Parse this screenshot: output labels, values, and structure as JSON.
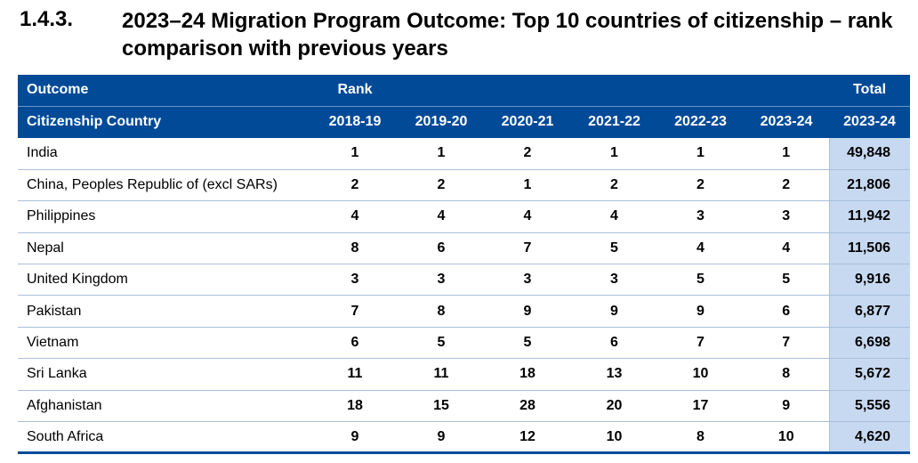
{
  "heading": {
    "number": "1.4.3.",
    "title": "2023–24 Migration Program Outcome: Top 10 countries of citizenship – rank comparison with previous years"
  },
  "table": {
    "header_row1": {
      "outcome": "Outcome",
      "rank": "Rank",
      "total": "Total"
    },
    "header_row2": {
      "country": "Citizenship Country",
      "years": [
        "2018-19",
        "2019-20",
        "2020-21",
        "2021-22",
        "2022-23",
        "2023-24"
      ],
      "total_year": "2023-24"
    },
    "rows": [
      {
        "country": "India",
        "ranks": [
          "1",
          "1",
          "2",
          "1",
          "1",
          "1"
        ],
        "total": "49,848"
      },
      {
        "country": "China, Peoples Republic of (excl SARs)",
        "ranks": [
          "2",
          "2",
          "1",
          "2",
          "2",
          "2"
        ],
        "total": "21,806"
      },
      {
        "country": "Philippines",
        "ranks": [
          "4",
          "4",
          "4",
          "4",
          "3",
          "3"
        ],
        "total": "11,942"
      },
      {
        "country": "Nepal",
        "ranks": [
          "8",
          "6",
          "7",
          "5",
          "4",
          "4"
        ],
        "total": "11,506"
      },
      {
        "country": "United Kingdom",
        "ranks": [
          "3",
          "3",
          "3",
          "3",
          "5",
          "5"
        ],
        "total": "9,916"
      },
      {
        "country": "Pakistan",
        "ranks": [
          "7",
          "8",
          "9",
          "9",
          "9",
          "6"
        ],
        "total": "6,877"
      },
      {
        "country": "Vietnam",
        "ranks": [
          "6",
          "5",
          "5",
          "6",
          "7",
          "7"
        ],
        "total": "6,698"
      },
      {
        "country": "Sri Lanka",
        "ranks": [
          "11",
          "11",
          "18",
          "13",
          "10",
          "8"
        ],
        "total": "5,672"
      },
      {
        "country": "Afghanistan",
        "ranks": [
          "18",
          "15",
          "28",
          "20",
          "17",
          "9"
        ],
        "total": "5,556"
      },
      {
        "country": "South Africa",
        "ranks": [
          "9",
          "9",
          "12",
          "10",
          "8",
          "10"
        ],
        "total": "4,620"
      }
    ]
  },
  "colors": {
    "header_bg": "#004a98",
    "total_col_bg": "#c6d9f1",
    "row_divider": "#a9bfda"
  }
}
